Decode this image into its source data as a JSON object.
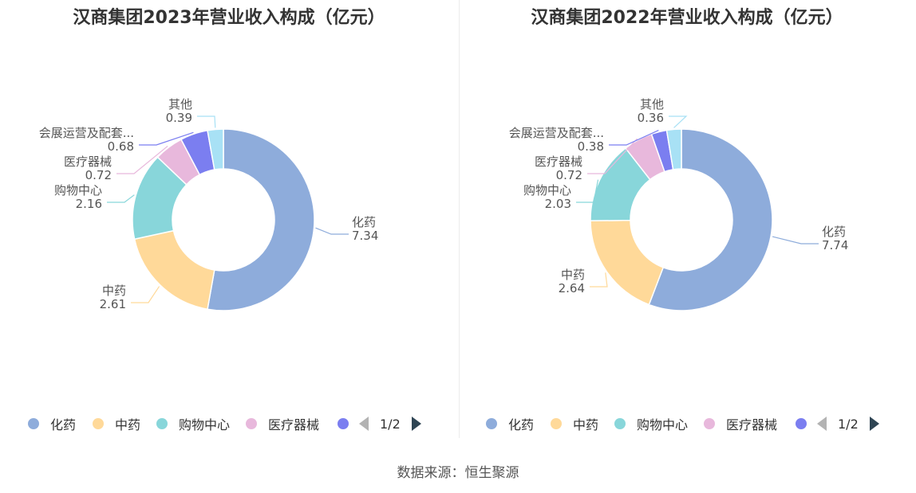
{
  "chart_data": [
    {
      "type": "pie",
      "title": "汉商集团2023年营业收入构成（亿元）",
      "slices": [
        {
          "label": "化药",
          "value": 7.34,
          "color": "#8eacdb"
        },
        {
          "label": "中药",
          "value": 2.61,
          "color": "#ffd999"
        },
        {
          "label": "购物中心",
          "value": 2.16,
          "color": "#88d6da"
        },
        {
          "label": "医疗器械",
          "value": 0.72,
          "color": "#e8b8dc"
        },
        {
          "label": "会展运营及配套...",
          "value": 0.68,
          "color": "#7b7ef0"
        },
        {
          "label": "其他",
          "value": 0.39,
          "color": "#a8e1f5"
        }
      ],
      "legend_items": [
        "化药",
        "中药",
        "购物中心",
        "医疗器械"
      ],
      "legend_page": "1/2",
      "legend_position": "bottom"
    },
    {
      "type": "pie",
      "title": "汉商集团2022年营业收入构成（亿元）",
      "slices": [
        {
          "label": "化药",
          "value": 7.74,
          "color": "#8eacdb"
        },
        {
          "label": "中药",
          "value": 2.64,
          "color": "#ffd999"
        },
        {
          "label": "购物中心",
          "value": 2.03,
          "color": "#88d6da"
        },
        {
          "label": "医疗器械",
          "value": 0.72,
          "color": "#e8b8dc"
        },
        {
          "label": "会展运营及配套...",
          "value": 0.38,
          "color": "#7b7ef0"
        },
        {
          "label": "其他",
          "value": 0.36,
          "color": "#a8e1f5"
        }
      ],
      "legend_items": [
        "化药",
        "中药",
        "购物中心",
        "医疗器械"
      ],
      "legend_page": "1/2",
      "legend_position": "bottom"
    }
  ],
  "source": "数据来源：恒生聚源"
}
